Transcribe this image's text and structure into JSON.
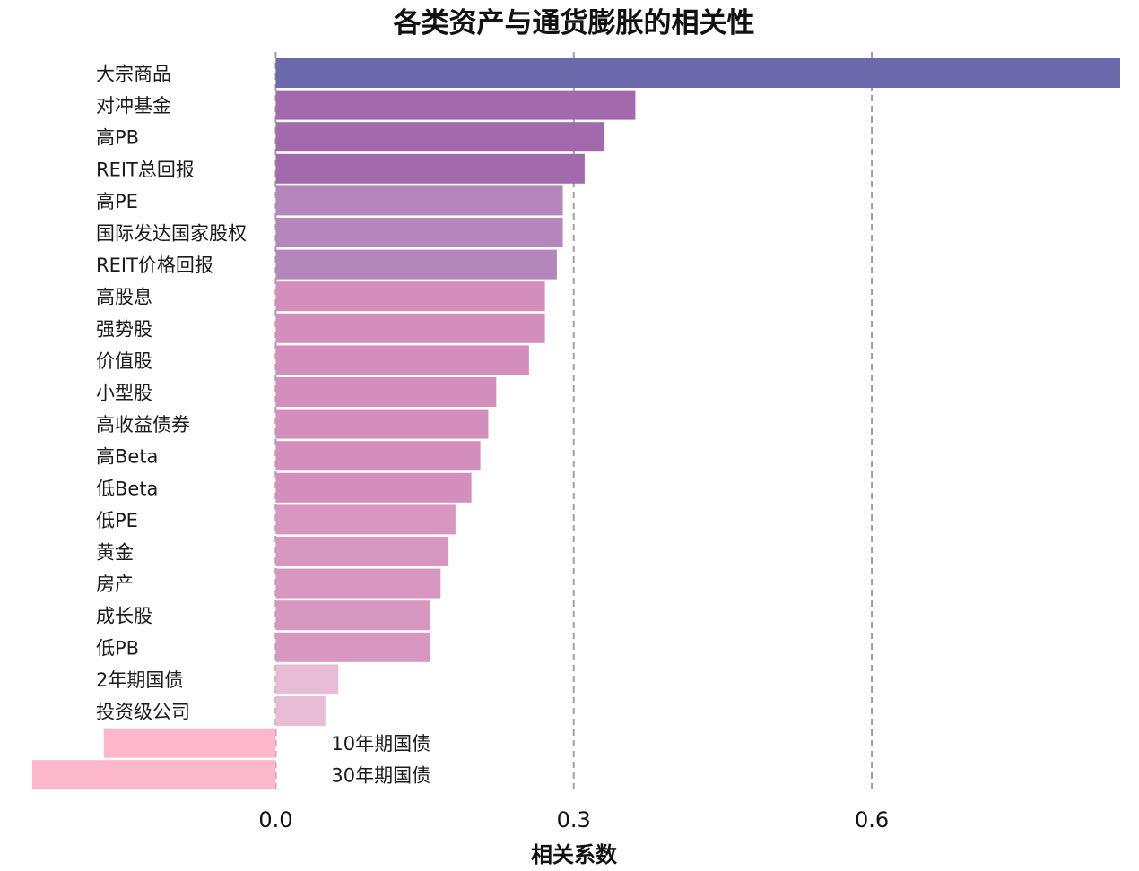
{
  "chart_data": {
    "type": "bar",
    "orientation": "horizontal",
    "title": "各类资产与通货膨胀的相关性",
    "xlabel": "相关系数",
    "ylabel": "",
    "xlim": [
      -0.245,
      0.85
    ],
    "xticks": [
      0.0,
      0.3,
      0.6
    ],
    "xtick_labels": [
      "0.0",
      "0.3",
      "0.6"
    ],
    "grid": "vertical dashed at ticks",
    "legend": "none",
    "categories": [
      "大宗商品",
      "对冲基金",
      "高PB",
      "REIT总回报",
      "高PE",
      "国际发达国家股权",
      "REIT价格回报",
      "高股息",
      "强势股",
      "价值股",
      "小型股",
      "高收益债券",
      "高Beta",
      "低Beta",
      "低PE",
      "黄金",
      "房产",
      "成长股",
      "低PB",
      "2年期国债",
      "投资级公司",
      "10年期国债",
      "30年期国债"
    ],
    "values": [
      0.85,
      0.362,
      0.331,
      0.311,
      0.289,
      0.289,
      0.283,
      0.271,
      0.271,
      0.255,
      0.222,
      0.214,
      0.206,
      0.197,
      0.181,
      0.174,
      0.166,
      0.155,
      0.155,
      0.063,
      0.05,
      -0.173,
      -0.245
    ],
    "colors": [
      "#6b69ac",
      "#a26aad",
      "#a26aad",
      "#a26aad",
      "#b486bc",
      "#b486bc",
      "#b486bc",
      "#d38ebb",
      "#d38ebb",
      "#d38ebb",
      "#d38ebb",
      "#d38ebb",
      "#d38ebb",
      "#d38ebb",
      "#d797c1",
      "#d797c1",
      "#d797c1",
      "#d797c1",
      "#d797c1",
      "#e9bcd6",
      "#e9bcd6",
      "#fdb7cc",
      "#fdb7cc"
    ]
  }
}
